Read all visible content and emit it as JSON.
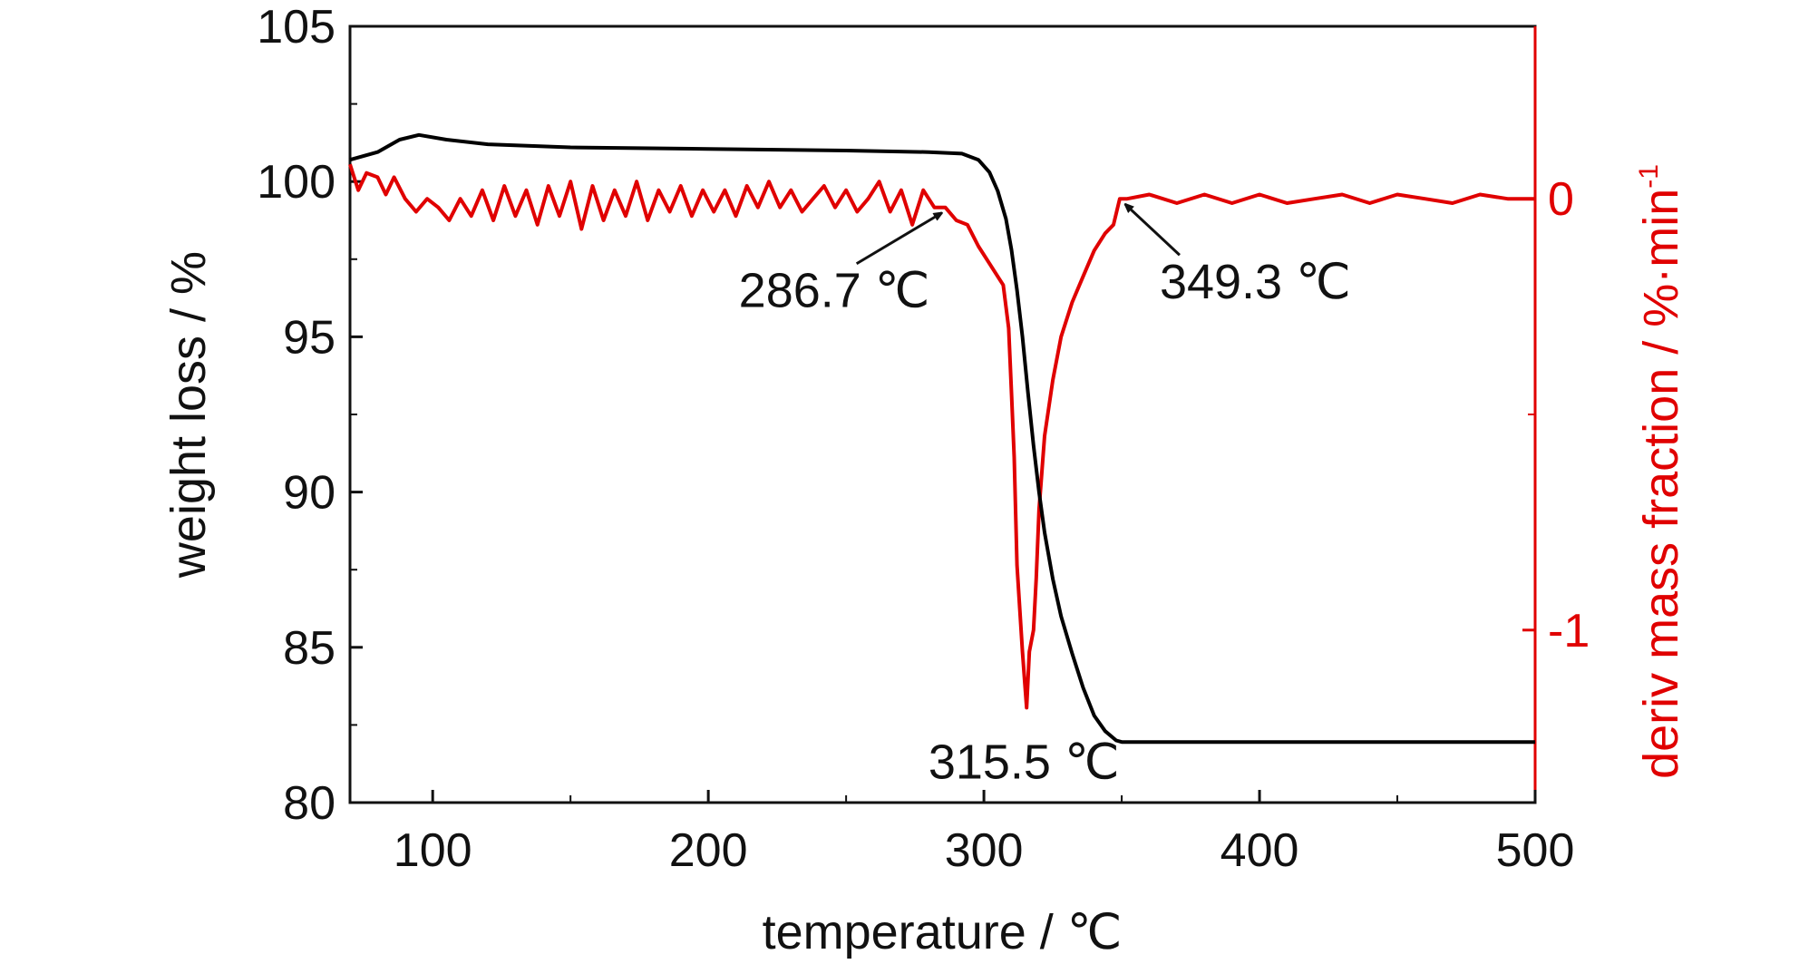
{
  "chart_data": {
    "type": "line",
    "xlabel": "temperature / ℃",
    "ylabel_left": "weight loss / %",
    "ylabel_right_main": "deriv mass fraction / %·min",
    "ylabel_right_sup": "-1",
    "xlim": [
      70,
      500
    ],
    "ylim_left": [
      80,
      105
    ],
    "ylim_right": [
      -1.4,
      0.4
    ],
    "x_ticks": [
      100,
      200,
      300,
      400,
      500
    ],
    "x_tick_labels": [
      "100",
      "200",
      "300",
      "400",
      "500"
    ],
    "y_left_ticks": [
      80,
      85,
      90,
      95,
      100,
      105
    ],
    "y_left_tick_labels": [
      "80",
      "85",
      "90",
      "95",
      "100",
      "105"
    ],
    "y_right_ticks": [
      -1,
      0
    ],
    "y_right_tick_labels": [
      "-1",
      "0"
    ],
    "grid": false,
    "series": [
      {
        "axis": "left",
        "color": "#000000",
        "points": [
          [
            70,
            100.7
          ],
          [
            80,
            100.95
          ],
          [
            88,
            101.35
          ],
          [
            95,
            101.5
          ],
          [
            105,
            101.35
          ],
          [
            120,
            101.2
          ],
          [
            150,
            101.1
          ],
          [
            200,
            101.05
          ],
          [
            250,
            101.0
          ],
          [
            280,
            100.95
          ],
          [
            292,
            100.9
          ],
          [
            298,
            100.7
          ],
          [
            302,
            100.3
          ],
          [
            305,
            99.7
          ],
          [
            308,
            98.8
          ],
          [
            310,
            97.8
          ],
          [
            312,
            96.5
          ],
          [
            314,
            95.0
          ],
          [
            316,
            93.2
          ],
          [
            318,
            91.5
          ],
          [
            320,
            90.0
          ],
          [
            322,
            88.7
          ],
          [
            325,
            87.2
          ],
          [
            328,
            86.0
          ],
          [
            332,
            84.8
          ],
          [
            336,
            83.7
          ],
          [
            340,
            82.8
          ],
          [
            344,
            82.3
          ],
          [
            348,
            82.0
          ],
          [
            350,
            81.95
          ],
          [
            500,
            81.95
          ]
        ]
      },
      {
        "axis": "right",
        "color": "#e00000",
        "points": [
          [
            70,
            0.08
          ],
          [
            73,
            0.02
          ],
          [
            76,
            0.06
          ],
          [
            80,
            0.05
          ],
          [
            83,
            0.01
          ],
          [
            86,
            0.05
          ],
          [
            90,
            0.0
          ],
          [
            94,
            -0.03
          ],
          [
            98,
            0.0
          ],
          [
            102,
            -0.02
          ],
          [
            106,
            -0.05
          ],
          [
            110,
            0.0
          ],
          [
            114,
            -0.04
          ],
          [
            118,
            0.02
          ],
          [
            122,
            -0.05
          ],
          [
            126,
            0.03
          ],
          [
            130,
            -0.04
          ],
          [
            134,
            0.02
          ],
          [
            138,
            -0.06
          ],
          [
            142,
            0.03
          ],
          [
            146,
            -0.04
          ],
          [
            150,
            0.04
          ],
          [
            154,
            -0.07
          ],
          [
            158,
            0.03
          ],
          [
            162,
            -0.05
          ],
          [
            166,
            0.02
          ],
          [
            170,
            -0.04
          ],
          [
            174,
            0.04
          ],
          [
            178,
            -0.05
          ],
          [
            182,
            0.02
          ],
          [
            186,
            -0.03
          ],
          [
            190,
            0.03
          ],
          [
            194,
            -0.04
          ],
          [
            198,
            0.02
          ],
          [
            202,
            -0.03
          ],
          [
            206,
            0.02
          ],
          [
            210,
            -0.04
          ],
          [
            214,
            0.03
          ],
          [
            218,
            -0.02
          ],
          [
            222,
            0.04
          ],
          [
            226,
            -0.02
          ],
          [
            230,
            0.02
          ],
          [
            234,
            -0.03
          ],
          [
            238,
            0.0
          ],
          [
            242,
            0.03
          ],
          [
            246,
            -0.02
          ],
          [
            250,
            0.02
          ],
          [
            254,
            -0.03
          ],
          [
            258,
            0.0
          ],
          [
            262,
            0.04
          ],
          [
            266,
            -0.03
          ],
          [
            270,
            0.02
          ],
          [
            274,
            -0.06
          ],
          [
            278,
            0.02
          ],
          [
            282,
            -0.02
          ],
          [
            286,
            -0.02
          ],
          [
            290,
            -0.05
          ],
          [
            294,
            -0.06
          ],
          [
            298,
            -0.11
          ],
          [
            302,
            -0.15
          ],
          [
            305,
            -0.18
          ],
          [
            307,
            -0.2
          ],
          [
            309,
            -0.3
          ],
          [
            310,
            -0.45
          ],
          [
            311,
            -0.6
          ],
          [
            312,
            -0.85
          ],
          [
            313,
            -0.95
          ],
          [
            314,
            -1.05
          ],
          [
            315.5,
            -1.18
          ],
          [
            316.5,
            -1.05
          ],
          [
            318,
            -1.0
          ],
          [
            319,
            -0.88
          ],
          [
            320,
            -0.72
          ],
          [
            322,
            -0.55
          ],
          [
            325,
            -0.42
          ],
          [
            328,
            -0.32
          ],
          [
            332,
            -0.24
          ],
          [
            336,
            -0.18
          ],
          [
            340,
            -0.12
          ],
          [
            344,
            -0.08
          ],
          [
            347,
            -0.06
          ],
          [
            349.3,
            0.0
          ],
          [
            352,
            0.0
          ],
          [
            360,
            0.01
          ],
          [
            370,
            -0.01
          ],
          [
            380,
            0.01
          ],
          [
            390,
            -0.01
          ],
          [
            400,
            0.01
          ],
          [
            410,
            -0.01
          ],
          [
            420,
            0.0
          ],
          [
            430,
            0.01
          ],
          [
            440,
            -0.01
          ],
          [
            450,
            0.01
          ],
          [
            460,
            0.0
          ],
          [
            470,
            -0.01
          ],
          [
            480,
            0.01
          ],
          [
            490,
            0.0
          ],
          [
            500,
            0.0
          ]
        ]
      }
    ],
    "annotations": [
      {
        "text": "286.7 ℃",
        "x": 286.7,
        "series": "right"
      },
      {
        "text": "315.5 ℃",
        "x": 315.5,
        "series": "right"
      },
      {
        "text": "349.3 ℃",
        "x": 349.3,
        "series": "right"
      }
    ],
    "colors": {
      "left_axis": "#111111",
      "right_axis": "#e00000"
    }
  }
}
